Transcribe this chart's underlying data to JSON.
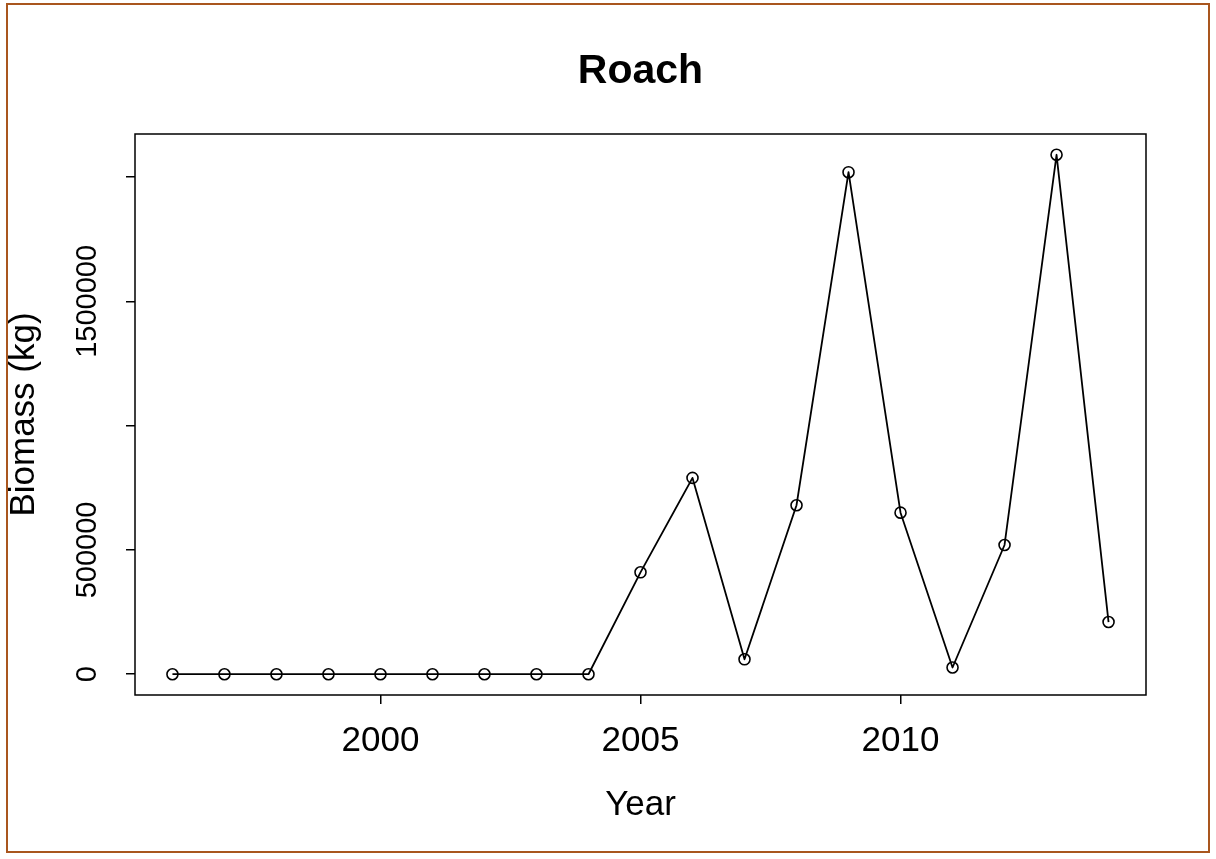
{
  "chart_data": {
    "type": "line",
    "title": "Roach",
    "xlabel": "Year",
    "ylabel": "Biomass (kg)",
    "x": [
      1996,
      1997,
      1998,
      1999,
      2000,
      2001,
      2002,
      2003,
      2004,
      2005,
      2006,
      2007,
      2008,
      2009,
      2010,
      2011,
      2012,
      2013,
      2014
    ],
    "values": [
      0,
      0,
      0,
      0,
      0,
      0,
      0,
      0,
      0,
      410000,
      790000,
      60000,
      680000,
      2020000,
      650000,
      27000,
      520000,
      2090000,
      210000
    ],
    "color": "#000000",
    "marker": "circle",
    "xlim": [
      1995.28,
      2014.72
    ],
    "xticks": [
      2000,
      2005,
      2010
    ],
    "ylim": [
      -83600,
      2173600
    ],
    "yticks": [
      0,
      500000,
      {
        "value": 1000000,
        "label": null
      },
      1500000,
      {
        "value": 2000000,
        "label": null
      }
    ]
  }
}
